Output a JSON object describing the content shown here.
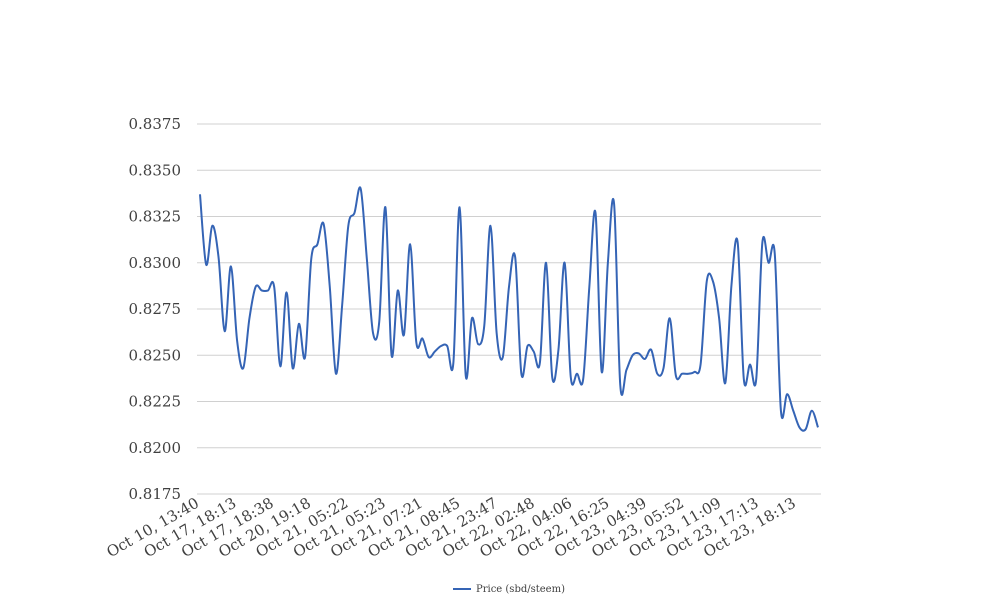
{
  "chart_data": {
    "type": "line",
    "title": "",
    "xlabel": "",
    "ylabel": "",
    "ylim": [
      0.8175,
      0.8375
    ],
    "y_ticks": [
      "0.8175",
      "0.8200",
      "0.8225",
      "0.8250",
      "0.8275",
      "0.8300",
      "0.8325",
      "0.8350",
      "0.8375"
    ],
    "x_tick_labels": [
      "Oct 10, 13:40",
      "Oct 17, 18:13",
      "Oct 17, 18:38",
      "Oct 20, 19:18",
      "Oct 21, 05:22",
      "Oct 21, 05:23",
      "Oct 21, 07:21",
      "Oct 21, 08:45",
      "Oct 21, 23:47",
      "Oct 22, 02:48",
      "Oct 22, 04:06",
      "Oct 22, 16:25",
      "Oct 23, 04:39",
      "Oct 23, 05:52",
      "Oct 23, 11:09",
      "Oct 23, 17:13",
      "Oct 23, 18:13"
    ],
    "grid": true,
    "legend_position": "bottom",
    "series": [
      {
        "name": "Price (sbd/steem)",
        "color": "#3564b5",
        "values": [
          0.8337,
          0.8299,
          0.832,
          0.8303,
          0.8263,
          0.8298,
          0.8258,
          0.8243,
          0.827,
          0.8287,
          0.8285,
          0.8285,
          0.8287,
          0.8244,
          0.8284,
          0.8243,
          0.8267,
          0.8249,
          0.8302,
          0.831,
          0.8321,
          0.8287,
          0.824,
          0.8277,
          0.832,
          0.8327,
          0.834,
          0.8302,
          0.8262,
          0.8268,
          0.833,
          0.825,
          0.8285,
          0.8261,
          0.831,
          0.8257,
          0.8259,
          0.8249,
          0.8252,
          0.8255,
          0.8255,
          0.8246,
          0.833,
          0.8239,
          0.827,
          0.8256,
          0.8266,
          0.832,
          0.8262,
          0.8249,
          0.8287,
          0.8303,
          0.824,
          0.8255,
          0.8252,
          0.8246,
          0.83,
          0.8238,
          0.8253,
          0.83,
          0.8238,
          0.824,
          0.8237,
          0.8287,
          0.8327,
          0.8241,
          0.83,
          0.8332,
          0.8234,
          0.8242,
          0.825,
          0.8251,
          0.8248,
          0.8253,
          0.824,
          0.8243,
          0.827,
          0.8239,
          0.824,
          0.824,
          0.8241,
          0.8245,
          0.829,
          0.829,
          0.827,
          0.8235,
          0.8288,
          0.8311,
          0.8237,
          0.8245,
          0.8237,
          0.8311,
          0.83,
          0.8305,
          0.822,
          0.8229,
          0.822,
          0.8211,
          0.821,
          0.822,
          0.8211
        ]
      }
    ]
  }
}
